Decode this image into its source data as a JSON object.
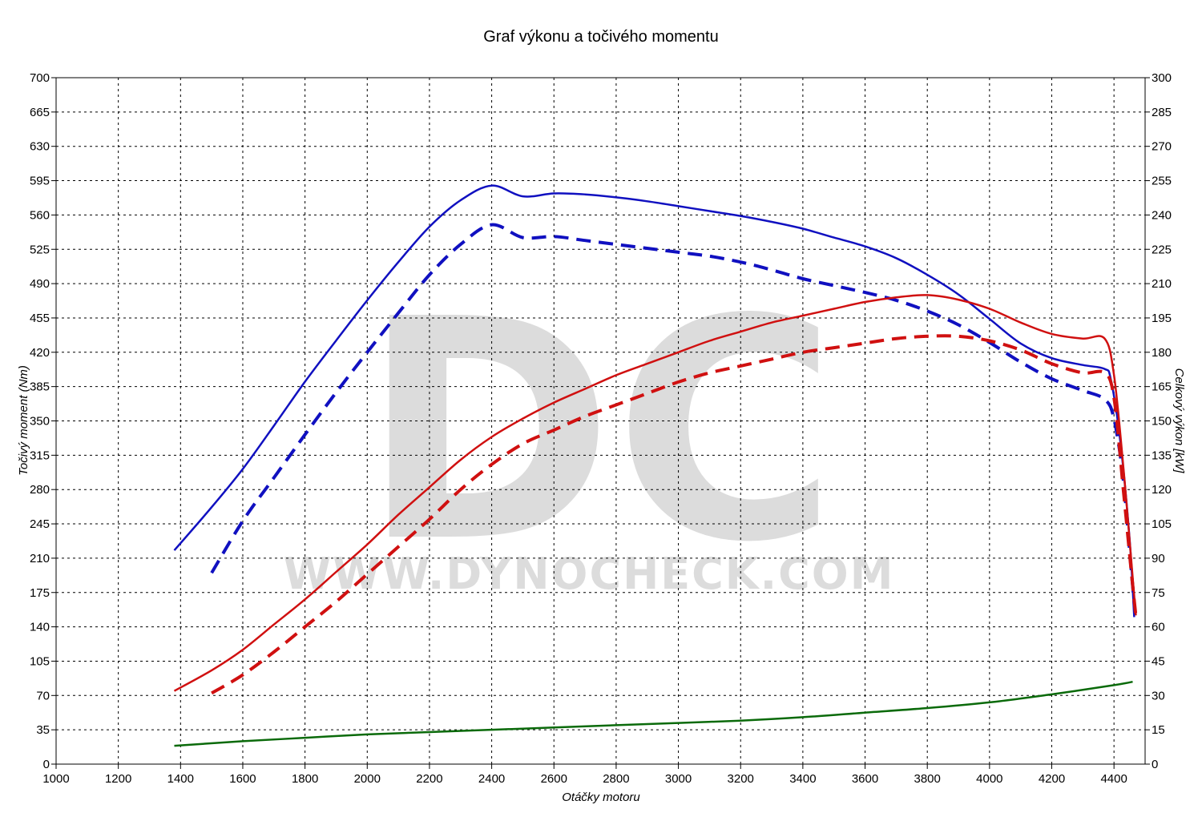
{
  "chart_data": {
    "type": "line",
    "title": "Graf výkonu a točivého momentu",
    "xlabel": "Otáčky motoru",
    "ylabel_left": "Točivý moment (Nm)",
    "ylabel_right": "Celkový výkon [kW]",
    "xlim": [
      1000,
      4500
    ],
    "ylim_left": [
      0,
      700
    ],
    "ylim_right": [
      0,
      300
    ],
    "x_ticks": [
      "1000",
      "1200",
      "1400",
      "1600",
      "1800",
      "2000",
      "2200",
      "2400",
      "2600",
      "2800",
      "3000",
      "3200",
      "3400",
      "3600",
      "3800",
      "4000",
      "4200",
      "4400"
    ],
    "y_ticks_left": [
      "0",
      "35",
      "70",
      "105",
      "140",
      "175",
      "210",
      "245",
      "280",
      "315",
      "350",
      "385",
      "420",
      "455",
      "490",
      "525",
      "560",
      "595",
      "630",
      "665",
      "700"
    ],
    "y_ticks_right": [
      "0",
      "15",
      "30",
      "45",
      "60",
      "75",
      "90",
      "105",
      "120",
      "135",
      "150",
      "165",
      "180",
      "195",
      "210",
      "225",
      "240",
      "255",
      "270",
      "285",
      "300"
    ],
    "grid": true,
    "watermark": {
      "logo": "DC",
      "text": "WWW.DYNOCHECK.COM"
    },
    "series": [
      {
        "id": "torque_tuned",
        "axis": "left",
        "color": "#1010c0",
        "style": "solid",
        "points": [
          [
            1380,
            218
          ],
          [
            1500,
            262
          ],
          [
            1600,
            301
          ],
          [
            1700,
            345
          ],
          [
            1800,
            390
          ],
          [
            1900,
            432
          ],
          [
            2000,
            473
          ],
          [
            2100,
            512
          ],
          [
            2200,
            548
          ],
          [
            2300,
            575
          ],
          [
            2400,
            590
          ],
          [
            2500,
            579
          ],
          [
            2600,
            582
          ],
          [
            2700,
            581
          ],
          [
            2800,
            578
          ],
          [
            2900,
            574
          ],
          [
            3000,
            569
          ],
          [
            3100,
            564
          ],
          [
            3200,
            559
          ],
          [
            3300,
            553
          ],
          [
            3400,
            546
          ],
          [
            3500,
            537
          ],
          [
            3600,
            528
          ],
          [
            3700,
            516
          ],
          [
            3800,
            499
          ],
          [
            3900,
            479
          ],
          [
            4000,
            454
          ],
          [
            4100,
            429
          ],
          [
            4200,
            414
          ],
          [
            4300,
            407
          ],
          [
            4370,
            403
          ],
          [
            4390,
            392
          ],
          [
            4420,
            330
          ],
          [
            4450,
            230
          ],
          [
            4465,
            150
          ]
        ]
      },
      {
        "id": "torque_stock",
        "axis": "left",
        "color": "#1010c0",
        "style": "dashed",
        "points": [
          [
            1500,
            195
          ],
          [
            1600,
            248
          ],
          [
            1700,
            292
          ],
          [
            1800,
            336
          ],
          [
            1900,
            379
          ],
          [
            2000,
            420
          ],
          [
            2100,
            460
          ],
          [
            2200,
            499
          ],
          [
            2300,
            530
          ],
          [
            2400,
            550
          ],
          [
            2500,
            537
          ],
          [
            2600,
            538
          ],
          [
            2700,
            534
          ],
          [
            2800,
            530
          ],
          [
            2900,
            526
          ],
          [
            3000,
            522
          ],
          [
            3100,
            518
          ],
          [
            3200,
            512
          ],
          [
            3300,
            504
          ],
          [
            3400,
            495
          ],
          [
            3500,
            488
          ],
          [
            3600,
            481
          ],
          [
            3700,
            473
          ],
          [
            3800,
            462
          ],
          [
            3900,
            448
          ],
          [
            4000,
            430
          ],
          [
            4100,
            410
          ],
          [
            4200,
            393
          ],
          [
            4300,
            381
          ],
          [
            4370,
            372
          ],
          [
            4400,
            352
          ],
          [
            4430,
            290
          ],
          [
            4455,
            200
          ],
          [
            4470,
            145
          ]
        ]
      },
      {
        "id": "power_tuned",
        "axis": "right",
        "color": "#d01010",
        "style": "solid",
        "points": [
          [
            1380,
            32
          ],
          [
            1500,
            41
          ],
          [
            1600,
            50
          ],
          [
            1700,
            61
          ],
          [
            1800,
            72
          ],
          [
            1900,
            84
          ],
          [
            2000,
            96
          ],
          [
            2100,
            109
          ],
          [
            2200,
            121
          ],
          [
            2300,
            133
          ],
          [
            2400,
            143
          ],
          [
            2500,
            151
          ],
          [
            2600,
            158
          ],
          [
            2700,
            164
          ],
          [
            2800,
            170
          ],
          [
            2900,
            175
          ],
          [
            3000,
            180
          ],
          [
            3100,
            185
          ],
          [
            3200,
            189
          ],
          [
            3300,
            193
          ],
          [
            3400,
            196
          ],
          [
            3500,
            199
          ],
          [
            3600,
            202
          ],
          [
            3700,
            204
          ],
          [
            3800,
            205
          ],
          [
            3900,
            203
          ],
          [
            4000,
            199
          ],
          [
            4100,
            193
          ],
          [
            4200,
            188
          ],
          [
            4300,
            186
          ],
          [
            4370,
            186
          ],
          [
            4400,
            170
          ],
          [
            4430,
            130
          ],
          [
            4455,
            90
          ],
          [
            4470,
            65
          ]
        ]
      },
      {
        "id": "power_stock",
        "axis": "right",
        "color": "#d01010",
        "style": "dashed",
        "points": [
          [
            1500,
            31
          ],
          [
            1600,
            39
          ],
          [
            1700,
            49
          ],
          [
            1800,
            60
          ],
          [
            1900,
            71
          ],
          [
            2000,
            83
          ],
          [
            2100,
            95
          ],
          [
            2200,
            107
          ],
          [
            2300,
            120
          ],
          [
            2400,
            131
          ],
          [
            2500,
            140
          ],
          [
            2600,
            146
          ],
          [
            2700,
            152
          ],
          [
            2800,
            157
          ],
          [
            2900,
            162
          ],
          [
            3000,
            167
          ],
          [
            3100,
            171
          ],
          [
            3200,
            174
          ],
          [
            3300,
            177
          ],
          [
            3400,
            180
          ],
          [
            3500,
            182
          ],
          [
            3600,
            184
          ],
          [
            3700,
            186
          ],
          [
            3800,
            187
          ],
          [
            3900,
            187
          ],
          [
            4000,
            185
          ],
          [
            4100,
            181
          ],
          [
            4200,
            175
          ],
          [
            4300,
            171
          ],
          [
            4370,
            171
          ],
          [
            4400,
            160
          ],
          [
            4430,
            120
          ],
          [
            4455,
            85
          ],
          [
            4470,
            65
          ]
        ]
      },
      {
        "id": "losses",
        "axis": "right",
        "color": "#0a6a0a",
        "style": "solid",
        "points": [
          [
            1380,
            8
          ],
          [
            1600,
            10
          ],
          [
            1800,
            11.5
          ],
          [
            2000,
            13
          ],
          [
            2200,
            14
          ],
          [
            2400,
            15
          ],
          [
            2600,
            16
          ],
          [
            2800,
            17
          ],
          [
            3000,
            18
          ],
          [
            3200,
            19
          ],
          [
            3400,
            20.5
          ],
          [
            3600,
            22.5
          ],
          [
            3800,
            24.5
          ],
          [
            4000,
            27
          ],
          [
            4200,
            30.5
          ],
          [
            4400,
            34.5
          ],
          [
            4460,
            36
          ]
        ]
      }
    ]
  }
}
